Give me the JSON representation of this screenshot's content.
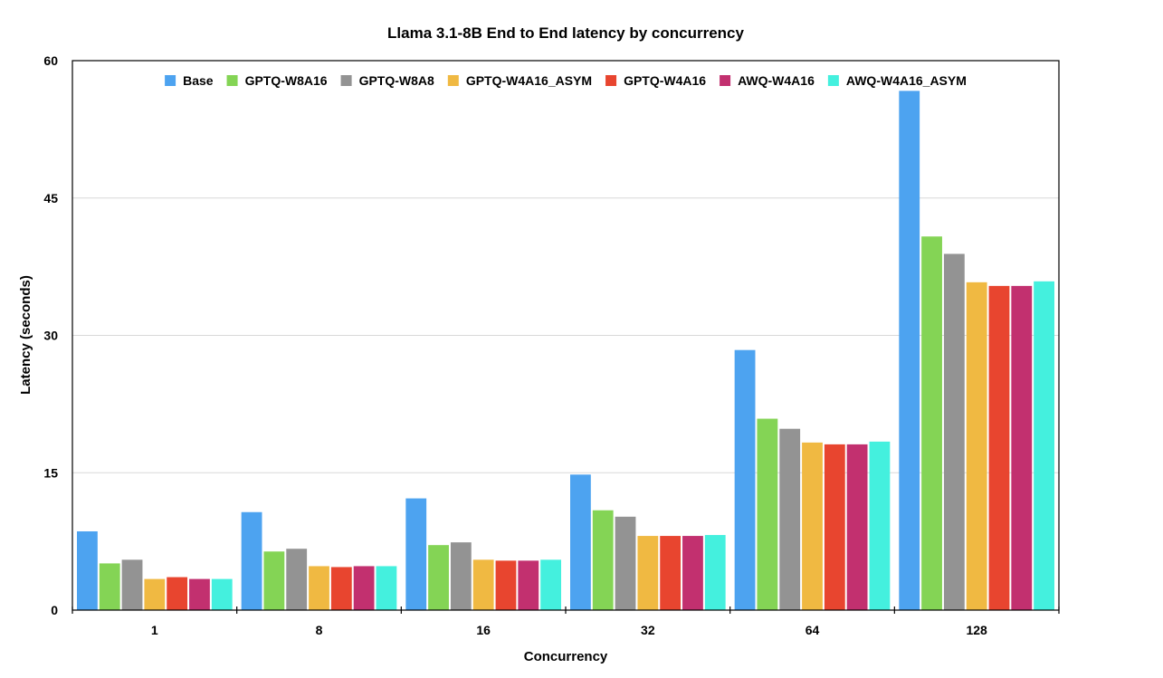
{
  "chart_data": {
    "type": "bar",
    "title": "Llama 3.1-8B End to End latency by concurrency",
    "xlabel": "Concurrency",
    "ylabel": "Latency (seconds)",
    "ylim": [
      0,
      60
    ],
    "yticks": [
      0,
      15,
      30,
      45,
      60
    ],
    "grid": true,
    "legend_position": "top",
    "categories": [
      "1",
      "8",
      "16",
      "32",
      "64",
      "128"
    ],
    "series": [
      {
        "name": "Base",
        "color": "#4DA3F0",
        "values": [
          8.6,
          10.7,
          12.2,
          14.8,
          28.4,
          56.7
        ]
      },
      {
        "name": "GPTQ-W8A16",
        "color": "#84D455",
        "values": [
          5.1,
          6.4,
          7.1,
          10.9,
          20.9,
          40.8
        ]
      },
      {
        "name": "GPTQ-W8A8",
        "color": "#939393",
        "values": [
          5.5,
          6.7,
          7.4,
          10.2,
          19.8,
          38.9
        ]
      },
      {
        "name": "GPTQ-W4A16_ASYM",
        "color": "#F0B942",
        "values": [
          3.4,
          4.8,
          5.5,
          8.1,
          18.3,
          35.8
        ]
      },
      {
        "name": "GPTQ-W4A16",
        "color": "#E8452F",
        "values": [
          3.6,
          4.7,
          5.4,
          8.1,
          18.1,
          35.4
        ]
      },
      {
        "name": "AWQ-W4A16",
        "color": "#C2306F",
        "values": [
          3.4,
          4.8,
          5.4,
          8.1,
          18.1,
          35.4
        ]
      },
      {
        "name": "AWQ-W4A16_ASYM",
        "color": "#44F0DE",
        "values": [
          3.4,
          4.8,
          5.5,
          8.2,
          18.4,
          35.9
        ]
      }
    ]
  }
}
